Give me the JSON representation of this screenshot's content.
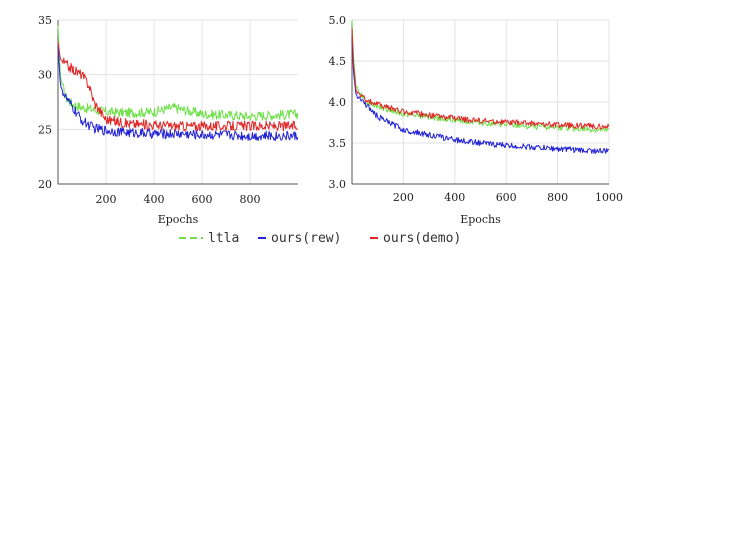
{
  "legend": [
    {
      "name": "ltla",
      "color": "#6fe04a",
      "dash": true
    },
    {
      "name": "ours(rew)",
      "color": "#2323d6",
      "dash": false
    },
    {
      "name": "ours(demo)",
      "color": "#e02828",
      "dash": false
    }
  ],
  "chart_data": [
    {
      "type": "line",
      "xlabel": "Epochs",
      "ylabel": "",
      "xlim": [
        0,
        1000
      ],
      "ylim": [
        20,
        35
      ],
      "xticks": [
        200,
        400,
        600,
        800
      ],
      "yticks": [
        20,
        25,
        30,
        35
      ],
      "grid": true,
      "series": [
        {
          "name": "ltla",
          "color": "#6fe04a",
          "x": [
            0,
            10,
            30,
            60,
            100,
            150,
            200,
            300,
            400,
            480,
            600,
            700,
            800,
            900,
            1000
          ],
          "y": [
            34.5,
            29.8,
            28.0,
            27.3,
            27.0,
            26.8,
            26.6,
            26.5,
            26.6,
            27.0,
            26.4,
            26.3,
            26.2,
            26.3,
            26.4
          ]
        },
        {
          "name": "ours(rew)",
          "color": "#2323d6",
          "x": [
            0,
            10,
            30,
            60,
            100,
            150,
            200,
            300,
            400,
            500,
            600,
            700,
            800,
            900,
            1000
          ],
          "y": [
            32.8,
            29.0,
            28.0,
            27.0,
            25.8,
            25.1,
            24.9,
            24.7,
            24.6,
            24.6,
            24.5,
            24.5,
            24.4,
            24.4,
            24.4
          ]
        },
        {
          "name": "ours(demo)",
          "color": "#e02828",
          "x": [
            0,
            10,
            30,
            60,
            100,
            130,
            150,
            200,
            300,
            400,
            500,
            600,
            700,
            800,
            900,
            1000
          ],
          "y": [
            33.0,
            31.4,
            31.0,
            30.5,
            30.0,
            29.0,
            27.5,
            25.9,
            25.5,
            25.4,
            25.3,
            25.3,
            25.3,
            25.3,
            25.3,
            25.3
          ]
        }
      ]
    },
    {
      "type": "line",
      "xlabel": "Epochs",
      "ylabel": "",
      "xlim": [
        0,
        1000
      ],
      "ylim": [
        3.0,
        5.0
      ],
      "xticks": [
        200,
        400,
        600,
        800,
        1000
      ],
      "yticks": [
        3.0,
        3.5,
        4.0,
        4.5,
        5.0
      ],
      "grid": true,
      "series": [
        {
          "name": "ltla",
          "color": "#6fe04a",
          "x": [
            0,
            5,
            15,
            30,
            60,
            100,
            200,
            300,
            400,
            500,
            600,
            700,
            800,
            900,
            1000
          ],
          "y": [
            5.0,
            4.6,
            4.2,
            4.1,
            4.0,
            3.95,
            3.85,
            3.82,
            3.78,
            3.75,
            3.72,
            3.7,
            3.69,
            3.67,
            3.65
          ]
        },
        {
          "name": "ours(rew)",
          "color": "#2323d6",
          "x": [
            0,
            5,
            15,
            30,
            60,
            100,
            200,
            300,
            400,
            500,
            600,
            700,
            800,
            900,
            1000
          ],
          "y": [
            4.8,
            4.4,
            4.1,
            4.05,
            3.95,
            3.82,
            3.66,
            3.6,
            3.54,
            3.5,
            3.47,
            3.45,
            3.43,
            3.41,
            3.4
          ]
        },
        {
          "name": "ours(demo)",
          "color": "#e02828",
          "x": [
            0,
            5,
            15,
            30,
            60,
            100,
            200,
            300,
            400,
            500,
            600,
            700,
            800,
            900,
            1000
          ],
          "y": [
            4.9,
            4.5,
            4.15,
            4.08,
            4.02,
            3.97,
            3.88,
            3.84,
            3.8,
            3.77,
            3.75,
            3.74,
            3.72,
            3.71,
            3.7
          ]
        }
      ]
    }
  ]
}
